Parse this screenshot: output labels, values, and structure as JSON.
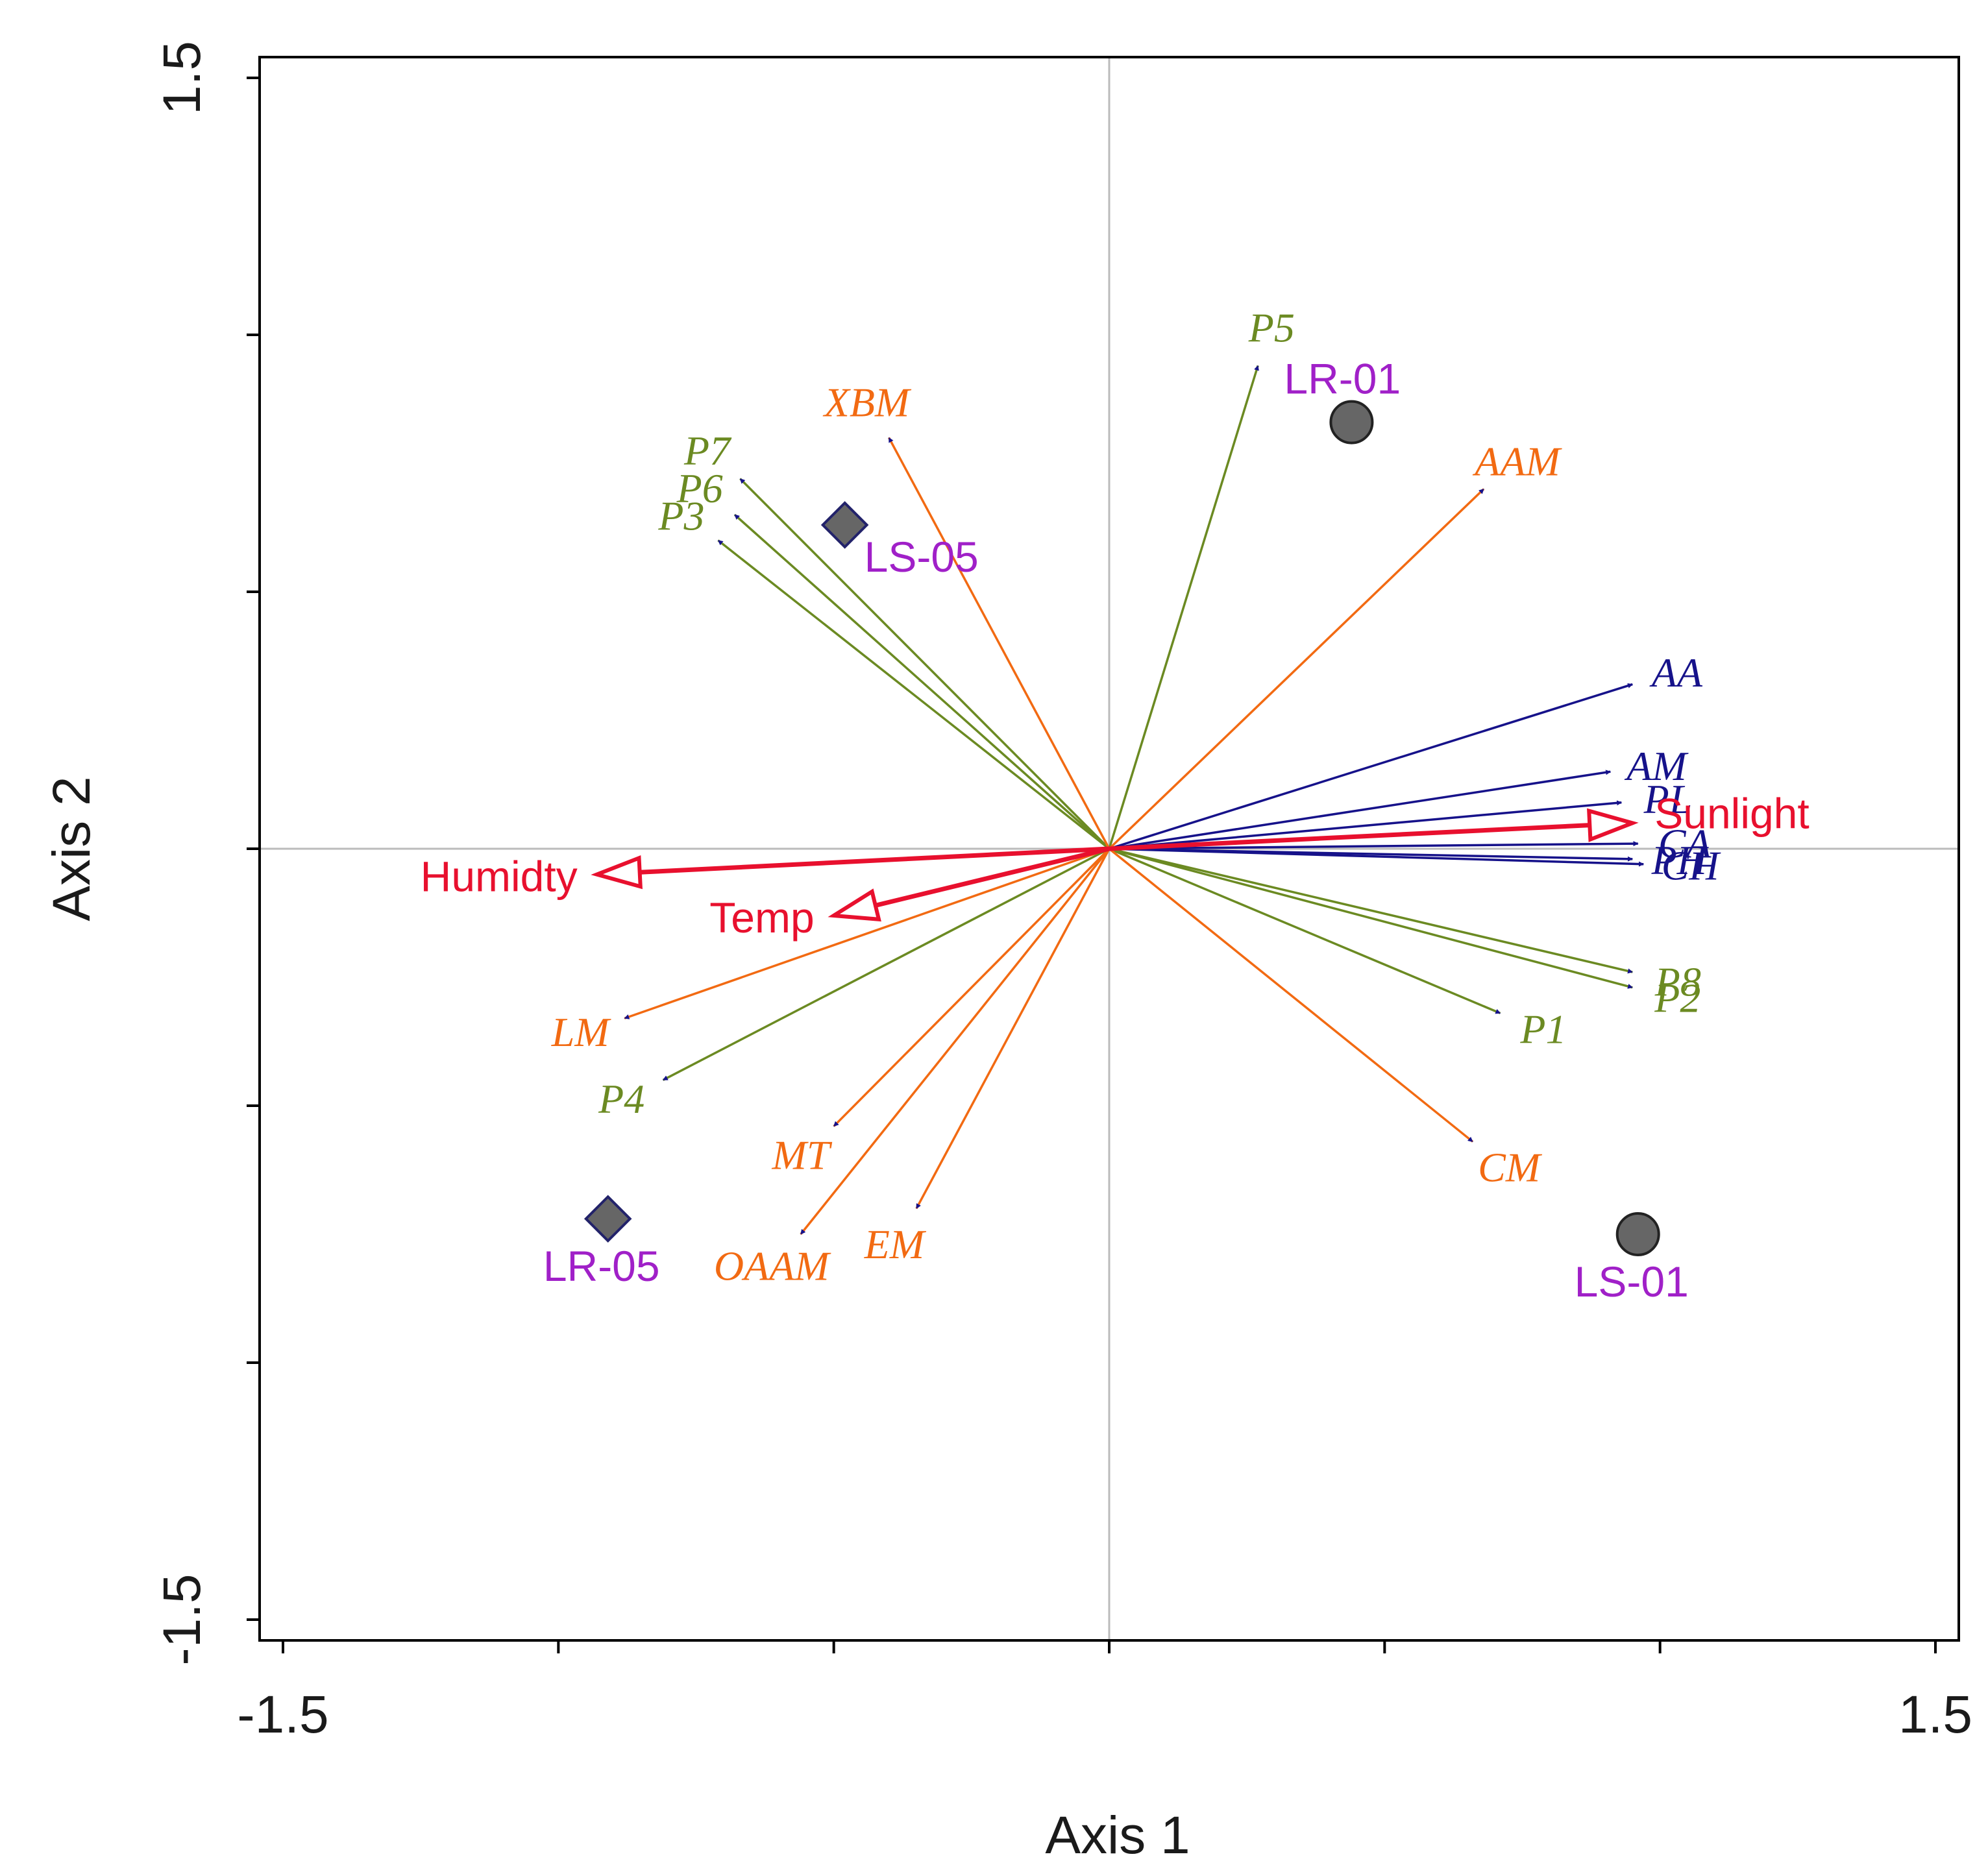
{
  "chart_data": {
    "type": "scatter",
    "xlabel": "Axis 1",
    "ylabel": "Axis 2",
    "xlim": [
      -1.5,
      1.5
    ],
    "ylim": [
      -1.5,
      1.5
    ],
    "x_tick_labels": [
      {
        "value": -1.5,
        "label": "-1.5"
      },
      {
        "value": 1.5,
        "label": "1.5"
      }
    ],
    "y_tick_labels": [
      {
        "value": 1.5,
        "label": "1.5"
      },
      {
        "value": -1.5,
        "label": "-1.5"
      }
    ],
    "x_ticks": [
      -1.5,
      -1.0,
      -0.5,
      0,
      0.5,
      1.0,
      1.5
    ],
    "y_ticks": [
      1.5,
      1.0,
      0.5,
      0,
      -0.5,
      -1.0,
      -1.5
    ],
    "zero_lines": true,
    "colors": {
      "environment": "#e8102e",
      "blue_group": "#16128a",
      "green_group": "#6b8a22",
      "orange_group": "#f26a12",
      "site_label": "#a020c8",
      "site_marker": "#666666",
      "zero_line": "#bbbbbb"
    },
    "environment_vectors": [
      {
        "label": "Humidty",
        "x": -0.93,
        "y": -0.05
      },
      {
        "label": "Temp",
        "x": -0.5,
        "y": -0.13
      },
      {
        "label": "Sunlight",
        "x": 0.95,
        "y": 0.05
      }
    ],
    "variable_vectors": [
      {
        "label": "AA",
        "x": 0.95,
        "y": 0.32,
        "group": "blue_group"
      },
      {
        "label": "AM",
        "x": 0.91,
        "y": 0.15,
        "group": "blue_group"
      },
      {
        "label": "PL",
        "x": 0.93,
        "y": 0.09,
        "group": "blue_group"
      },
      {
        "label": "CA",
        "x": 0.96,
        "y": 0.01,
        "group": "blue_group"
      },
      {
        "label": "CH",
        "x": 0.97,
        "y": -0.03,
        "group": "blue_group"
      },
      {
        "label": "PH",
        "x": 0.95,
        "y": -0.02,
        "group": "blue_group"
      },
      {
        "label": "P5",
        "x": 0.27,
        "y": 0.94,
        "group": "green_group"
      },
      {
        "label": "P7",
        "x": -0.67,
        "y": 0.72,
        "group": "green_group"
      },
      {
        "label": "P6",
        "x": -0.68,
        "y": 0.65,
        "group": "green_group"
      },
      {
        "label": "P3",
        "x": -0.71,
        "y": 0.6,
        "group": "green_group"
      },
      {
        "label": "P8",
        "x": 0.95,
        "y": -0.24,
        "group": "green_group"
      },
      {
        "label": "P2",
        "x": 0.95,
        "y": -0.27,
        "group": "green_group"
      },
      {
        "label": "P1",
        "x": 0.71,
        "y": -0.32,
        "group": "green_group"
      },
      {
        "label": "P4",
        "x": -0.81,
        "y": -0.45,
        "group": "green_group"
      },
      {
        "label": "XBM",
        "x": -0.4,
        "y": 0.8,
        "group": "orange_group"
      },
      {
        "label": "AAM",
        "x": 0.68,
        "y": 0.7,
        "group": "orange_group"
      },
      {
        "label": "LM",
        "x": -0.88,
        "y": -0.33,
        "group": "orange_group"
      },
      {
        "label": "MT",
        "x": -0.5,
        "y": -0.54,
        "group": "orange_group"
      },
      {
        "label": "OAAM",
        "x": -0.56,
        "y": -0.75,
        "group": "orange_group"
      },
      {
        "label": "EM",
        "x": -0.35,
        "y": -0.7,
        "group": "orange_group"
      },
      {
        "label": "CM",
        "x": 0.66,
        "y": -0.57,
        "group": "orange_group"
      }
    ],
    "sites": [
      {
        "label": "LR-01",
        "x": 0.44,
        "y": 0.83,
        "marker": "circle"
      },
      {
        "label": "LS-05",
        "x": -0.48,
        "y": 0.63,
        "marker": "diamond"
      },
      {
        "label": "LR-05",
        "x": -0.91,
        "y": -0.72,
        "marker": "diamond"
      },
      {
        "label": "LS-01",
        "x": 0.96,
        "y": -0.75,
        "marker": "circle"
      }
    ]
  }
}
